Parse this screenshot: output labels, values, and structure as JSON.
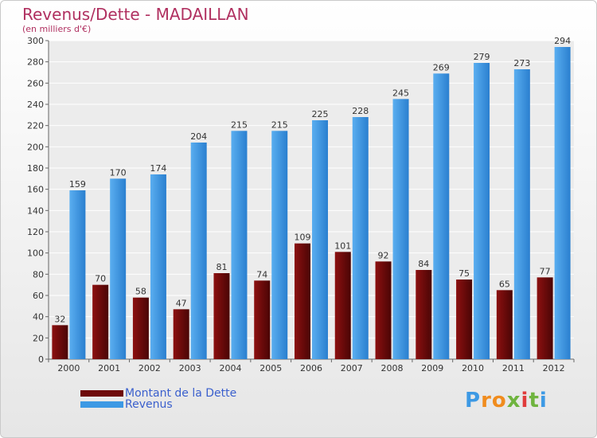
{
  "chart_data": {
    "type": "bar",
    "title": "Revenus/Dette - MADAILLAN",
    "subtitle": "(en milliers d'€)",
    "categories": [
      "2000",
      "2001",
      "2002",
      "2003",
      "2004",
      "2005",
      "2006",
      "2007",
      "2008",
      "2009",
      "2010",
      "2011",
      "2012"
    ],
    "series": [
      {
        "name": "Montant de la Dette",
        "color": "#7a0a0a",
        "values": [
          32,
          70,
          58,
          47,
          81,
          74,
          109,
          101,
          92,
          84,
          75,
          65,
          77
        ]
      },
      {
        "name": "Revenus",
        "color": "#3d99e4",
        "values": [
          159,
          170,
          174,
          204,
          215,
          215,
          225,
          228,
          245,
          269,
          279,
          273,
          294
        ]
      }
    ],
    "ylim": [
      0,
      300
    ],
    "yticks": [
      0,
      20,
      40,
      60,
      80,
      100,
      120,
      140,
      160,
      180,
      200,
      220,
      240,
      260,
      280,
      300
    ],
    "grid": true,
    "legend": "bottom-left"
  },
  "logo": {
    "letters": [
      "P",
      "r",
      "o",
      "x",
      "i",
      "t",
      "i"
    ],
    "colors": [
      "#3d99e4",
      "#f08c1e",
      "#f08c1e",
      "#6fb43f",
      "#e03c3c",
      "#6fb43f",
      "#3d99e4"
    ]
  }
}
